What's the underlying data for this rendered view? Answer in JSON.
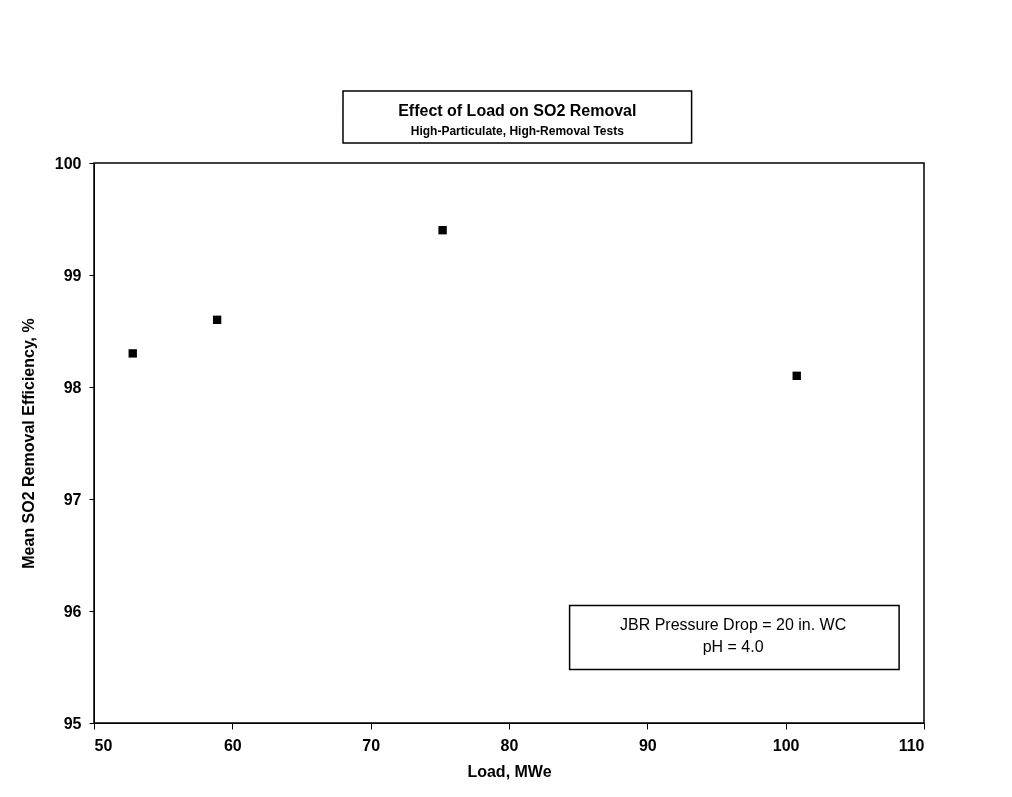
{
  "chart_data": {
    "type": "scatter",
    "title": "Effect of Load on SO2 Removal",
    "subtitle": "High-Particulate, High-Removal Tests",
    "xlabel": "Load, MWe",
    "ylabel": "Mean SO2 Removal Efficiency, %",
    "x": [
      52.8,
      58.9,
      75.2,
      100.8
    ],
    "series": [
      {
        "color": "#000000",
        "values": [
          98.3,
          98.6,
          99.4,
          98.1
        ]
      }
    ],
    "xlim": [
      50,
      110
    ],
    "xticks": [
      50,
      60,
      70,
      80,
      90,
      100,
      110
    ],
    "ylim": [
      95,
      100
    ],
    "yticks": [
      95,
      96,
      97,
      98,
      99,
      100
    ],
    "marker": "square",
    "grid": false,
    "legend": false,
    "annotations": [
      "JBR Pressure Drop = 20 in. WC\npH = 4.0"
    ]
  }
}
